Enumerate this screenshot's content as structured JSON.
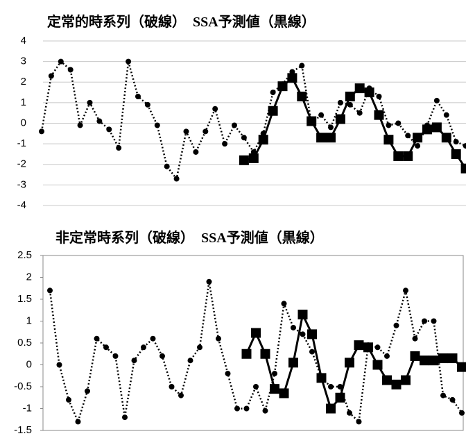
{
  "chart_data": [
    {
      "type": "line",
      "title": "定常的時系列（破線）　SSA予測値（黒線）",
      "ylim": [
        -4,
        4
      ],
      "yticks": [
        4,
        3,
        2,
        1,
        0,
        -1,
        -2,
        -3,
        -4
      ],
      "grid": true,
      "frame": false,
      "series": [
        {
          "color": "#000000",
          "dash": true,
          "marker": "circle",
          "values": [
            -0.4,
            2.3,
            3.0,
            2.6,
            -0.1,
            1.0,
            0.1,
            -0.3,
            -1.2,
            3.0,
            1.3,
            0.9,
            -0.1,
            -2.1,
            -2.7,
            -0.4,
            -1.4,
            -0.4,
            0.7,
            -1.0,
            -0.1,
            -0.7,
            -1.4,
            -0.5,
            1.5,
            1.9,
            2.5,
            2.8,
            0.0,
            0.4,
            -0.2,
            1.0,
            0.9,
            0.5,
            1.7,
            1.3,
            -0.1,
            0.0,
            -0.6,
            -1.1,
            -0.1,
            1.1,
            0.4,
            -0.9,
            -1.1
          ]
        },
        {
          "color": "#000000",
          "dash": false,
          "marker": "square",
          "values": [
            null,
            null,
            null,
            null,
            null,
            null,
            null,
            null,
            null,
            null,
            null,
            null,
            null,
            null,
            null,
            null,
            null,
            null,
            null,
            null,
            null,
            -1.8,
            -1.7,
            -0.8,
            0.6,
            1.8,
            2.2,
            1.3,
            0.1,
            -0.7,
            -0.7,
            0.2,
            1.3,
            1.7,
            1.5,
            0.4,
            -0.8,
            -1.6,
            -1.6,
            -0.7,
            -0.3,
            -0.2,
            -0.7,
            -1.5,
            -2.2
          ]
        }
      ]
    },
    {
      "type": "line",
      "title": "非定常時系列（破線）　SSA予測値（黒線）",
      "ylim": [
        -1.5,
        2.5
      ],
      "yticks": [
        2.5,
        2,
        1.5,
        1,
        0.5,
        0,
        -0.5,
        -1,
        -1.5
      ],
      "grid": false,
      "frame": true,
      "series": [
        {
          "color": "#000000",
          "dash": true,
          "marker": "circle",
          "values": [
            1.7,
            0.0,
            -0.8,
            -1.3,
            -0.6,
            0.6,
            0.4,
            0.2,
            -1.2,
            0.1,
            0.4,
            0.6,
            0.2,
            -0.5,
            -0.7,
            0.1,
            0.4,
            1.9,
            0.6,
            -0.2,
            -1.0,
            -1.0,
            -0.5,
            -1.05,
            -0.2,
            1.4,
            0.85,
            0.7,
            0.3,
            -0.3,
            -0.5,
            -0.5,
            -1.1,
            -1.3,
            0.45,
            0.4,
            0.2,
            0.9,
            1.7,
            0.6,
            1.0,
            1.0,
            -0.7,
            -0.8,
            -1.1
          ]
        },
        {
          "color": "#000000",
          "dash": false,
          "marker": "square",
          "values": [
            null,
            null,
            null,
            null,
            null,
            null,
            null,
            null,
            null,
            null,
            null,
            null,
            null,
            null,
            null,
            null,
            null,
            null,
            null,
            null,
            null,
            0.25,
            0.73,
            0.25,
            -0.55,
            -0.65,
            0.05,
            1.15,
            0.7,
            -0.3,
            -1.0,
            -0.75,
            0.05,
            0.45,
            0.4,
            0.0,
            -0.35,
            -0.45,
            -0.35,
            0.2,
            0.1,
            0.1,
            0.15,
            0.15,
            -0.05
          ]
        }
      ]
    }
  ]
}
